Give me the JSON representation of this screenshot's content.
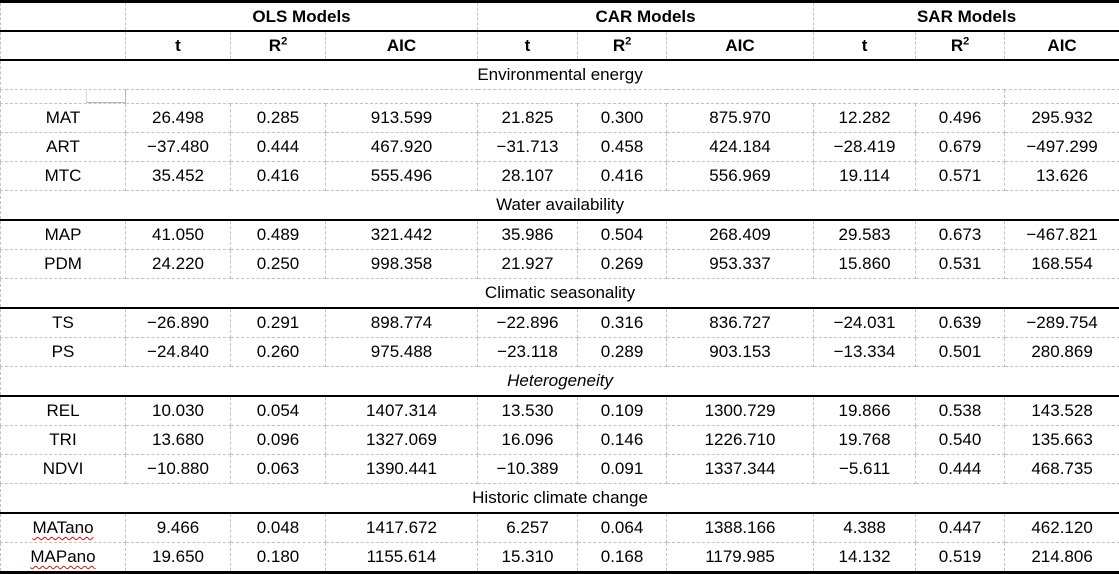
{
  "colors": {
    "border_strong": "#000000",
    "gridline": "#c3c3c3",
    "spellcheck_underline": "#e01010",
    "text": "#000000",
    "background": "#ffffff"
  },
  "header": {
    "corner": "",
    "groups": [
      {
        "label": "OLS Models"
      },
      {
        "label": "CAR Models"
      },
      {
        "label": "SAR Models"
      }
    ],
    "metrics": [
      "t",
      "R²",
      "AIC"
    ]
  },
  "table": {
    "sections": [
      {
        "title": "Environmental energy",
        "italic": false,
        "rule_below": false,
        "blank_row_after_title": true,
        "rows": [
          {
            "label": "MAT",
            "misspelled": false,
            "values": [
              "26.498",
              "0.285",
              "913.599",
              "21.825",
              "0.300",
              "875.970",
              "12.282",
              "0.496",
              "295.932"
            ]
          },
          {
            "label": "ART",
            "misspelled": false,
            "values": [
              "−37.480",
              "0.444",
              "467.920",
              "−31.713",
              "0.458",
              "424.184",
              "−28.419",
              "0.679",
              "−497.299"
            ]
          },
          {
            "label": "MTC",
            "misspelled": false,
            "values": [
              "35.452",
              "0.416",
              "555.496",
              "28.107",
              "0.416",
              "556.969",
              "19.114",
              "0.571",
              "13.626"
            ]
          }
        ]
      },
      {
        "title": "Water availability",
        "italic": false,
        "rule_below": true,
        "blank_row_after_title": false,
        "rows": [
          {
            "label": "MAP",
            "misspelled": false,
            "values": [
              "41.050",
              "0.489",
              "321.442",
              "35.986",
              "0.504",
              "268.409",
              "29.583",
              "0.673",
              "−467.821"
            ]
          },
          {
            "label": "PDM",
            "misspelled": false,
            "values": [
              "24.220",
              "0.250",
              "998.358",
              "21.927",
              "0.269",
              "953.337",
              "15.860",
              "0.531",
              "168.554"
            ]
          }
        ]
      },
      {
        "title": "Climatic seasonality",
        "italic": false,
        "rule_below": true,
        "blank_row_after_title": false,
        "rows": [
          {
            "label": "TS",
            "misspelled": false,
            "values": [
              "−26.890",
              "0.291",
              "898.774",
              "−22.896",
              "0.316",
              "836.727",
              "−24.031",
              "0.639",
              "−289.754"
            ]
          },
          {
            "label": "PS",
            "misspelled": false,
            "values": [
              "−24.840",
              "0.260",
              "975.488",
              "−23.118",
              "0.289",
              "903.153",
              "−13.334",
              "0.501",
              "280.869"
            ]
          }
        ]
      },
      {
        "title": "Heterogeneity",
        "italic": true,
        "rule_below": true,
        "blank_row_after_title": false,
        "rows": [
          {
            "label": "REL",
            "misspelled": false,
            "values": [
              "10.030",
              "0.054",
              "1407.314",
              "13.530",
              "0.109",
              "1300.729",
              "19.866",
              "0.538",
              "143.528"
            ]
          },
          {
            "label": "TRI",
            "misspelled": false,
            "values": [
              "13.680",
              "0.096",
              "1327.069",
              "16.096",
              "0.146",
              "1226.710",
              "19.768",
              "0.540",
              "135.663"
            ]
          },
          {
            "label": "NDVI",
            "misspelled": false,
            "values": [
              "−10.880",
              "0.063",
              "1390.441",
              "−10.389",
              "0.091",
              "1337.344",
              "−5.611",
              "0.444",
              "468.735"
            ]
          }
        ]
      },
      {
        "title": "Historic climate change",
        "italic": false,
        "rule_below": true,
        "blank_row_after_title": false,
        "rows": [
          {
            "label": "MATano",
            "misspelled": true,
            "values": [
              "9.466",
              "0.048",
              "1417.672",
              "6.257",
              "0.064",
              "1388.166",
              "4.388",
              "0.447",
              "462.120"
            ]
          },
          {
            "label": "MAPano",
            "misspelled": true,
            "values": [
              "19.650",
              "0.180",
              "1155.614",
              "15.310",
              "0.168",
              "1179.985",
              "14.132",
              "0.519",
              "214.806"
            ]
          }
        ]
      }
    ]
  }
}
